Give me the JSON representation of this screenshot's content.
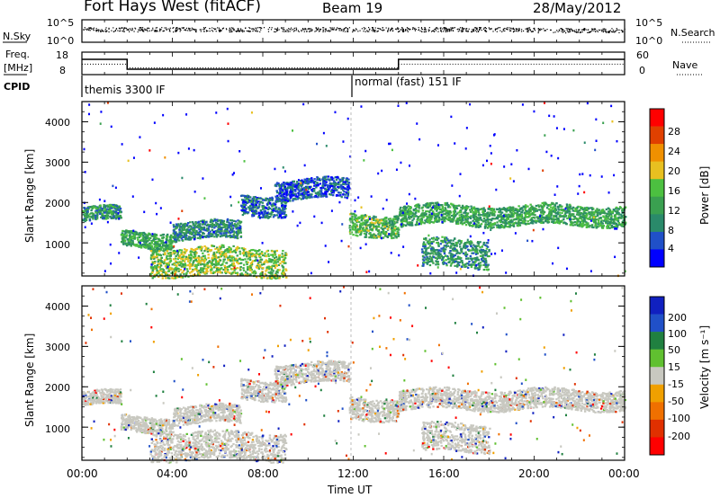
{
  "header": {
    "radar": "Fort Hays West (fitACF)",
    "beam": "Beam 19",
    "date": "28/May/2012"
  },
  "nsky_panel": {
    "left_label": "N.Sky",
    "right_label": "N.Search",
    "ticks_left": [
      "10^5",
      "10^0"
    ],
    "ticks_right": [
      "10^5",
      "10^0"
    ]
  },
  "freq_panel": {
    "left_label_1": "Freq.",
    "left_label_2": "[MHz]",
    "right_label": "Nave",
    "ticks_left": [
      "18",
      "8"
    ],
    "ticks_right": [
      "60",
      "0"
    ],
    "cpid_label": "CPID",
    "cpid_1": "themis 3300 IF",
    "cpid_2": "normal (fast) 151 IF",
    "freq_steps": [
      {
        "t0": 0,
        "t1": 2,
        "value": 14.8
      },
      {
        "t0": 2,
        "t1": 14,
        "value": 10.4
      },
      {
        "t0": 14,
        "t1": 24,
        "value": 14.8
      }
    ],
    "nave_steps": [
      {
        "t0": 0,
        "t1": 2,
        "value": 28
      },
      {
        "t0": 2,
        "t1": 14,
        "value": 18
      },
      {
        "t0": 14,
        "t1": 24,
        "value": 28
      }
    ]
  },
  "x_axis": {
    "title": "Time UT",
    "ticks": [
      "00:00",
      "04:00",
      "08:00",
      "12:00",
      "16:00",
      "20:00",
      "00:00"
    ]
  },
  "power_panel": {
    "ylabel": "Slant Range [km]",
    "yticks": [
      "1000",
      "2000",
      "3000",
      "4000"
    ],
    "colorbar_label": "Power [dB]",
    "colorbar_ticks": [
      "4",
      "8",
      "12",
      "16",
      "20",
      "24",
      "28"
    ],
    "colors": [
      "#0000ff",
      "#2050c8",
      "#2a8a6a",
      "#3aa050",
      "#4cc040",
      "#e8c020",
      "#f09000",
      "#e04000",
      "#ff0000"
    ]
  },
  "velocity_panel": {
    "ylabel": "Slant Range [km]",
    "yticks": [
      "1000",
      "2000",
      "3000",
      "4000"
    ],
    "colorbar_label": "Velocity [m s⁻¹]",
    "colorbar_ticks": [
      "200",
      "100",
      "50",
      "15",
      "-15",
      "-50",
      "-100",
      "-200"
    ],
    "colors": [
      "#1020c0",
      "#2050c8",
      "#208040",
      "#60c030",
      "#c8c8c0",
      "#f0a000",
      "#f07000",
      "#e03000",
      "#ff0000"
    ]
  },
  "chart_data": {
    "type": "heatmap",
    "x_range_hours": [
      0,
      24
    ],
    "y_range_km": [
      180,
      4500
    ],
    "scatter_bands": [
      {
        "t0": 0.0,
        "t1": 1.7,
        "range_km": [
          1550,
          1900
        ],
        "power_db": 14
      },
      {
        "t0": 1.7,
        "t1": 4.0,
        "range_km": [
          900,
          1300
        ],
        "power_db": 16
      },
      {
        "t0": 4.0,
        "t1": 7.0,
        "range_km": [
          1100,
          1550
        ],
        "power_db": 12
      },
      {
        "t0": 7.0,
        "t1": 9.0,
        "range_km": [
          1700,
          2200
        ],
        "power_db": 10
      },
      {
        "t0": 8.5,
        "t1": 11.8,
        "range_km": [
          2100,
          2600
        ],
        "power_db": 8
      },
      {
        "t0": 3.0,
        "t1": 9.0,
        "range_km": [
          200,
          900
        ],
        "power_db": 20
      },
      {
        "t0": 11.8,
        "t1": 14.0,
        "range_km": [
          1200,
          1750
        ],
        "power_db": 18
      },
      {
        "t0": 14.0,
        "t1": 24.0,
        "range_km": [
          1450,
          1950
        ],
        "power_db": 16
      },
      {
        "t0": 15.0,
        "t1": 18.0,
        "range_km": [
          400,
          1100
        ],
        "power_db": 14
      }
    ]
  }
}
